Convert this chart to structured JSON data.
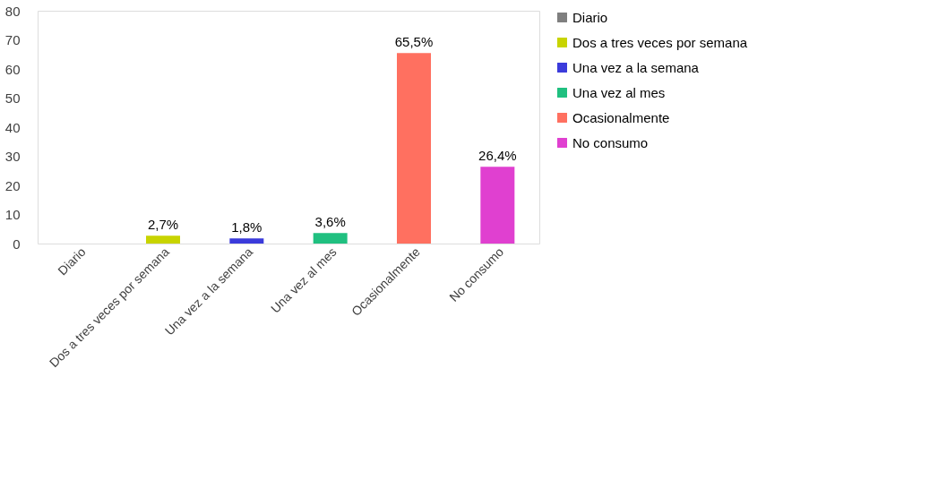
{
  "chart_data": {
    "type": "bar",
    "categories": [
      "Diario",
      "Dos a tres veces por semana",
      "Una vez a la semana",
      "Una vez al mes",
      "Ocasionalmente",
      "No consumo"
    ],
    "series": [
      {
        "name": "Diario",
        "color": "#7f7f7f",
        "values": [
          0,
          null,
          null,
          null,
          null,
          null
        ],
        "value_labels": [
          null,
          null,
          null,
          null,
          null,
          null
        ]
      },
      {
        "name": "Dos a tres veces por semana",
        "color": "#c8d400",
        "values": [
          null,
          2.7,
          null,
          null,
          null,
          null
        ],
        "value_labels": [
          null,
          "2,7%",
          null,
          null,
          null,
          null
        ]
      },
      {
        "name": "Una vez a la semana",
        "color": "#3b3bdb",
        "values": [
          null,
          null,
          1.8,
          null,
          null,
          null
        ],
        "value_labels": [
          null,
          null,
          "1,8%",
          null,
          null,
          null
        ]
      },
      {
        "name": "Una vez al mes",
        "color": "#20c080",
        "values": [
          null,
          null,
          null,
          3.6,
          null,
          null
        ],
        "value_labels": [
          null,
          null,
          null,
          "3,6%",
          null,
          null
        ]
      },
      {
        "name": "Ocasionalmente",
        "color": "#ff7060",
        "values": [
          null,
          null,
          null,
          null,
          65.5,
          null
        ],
        "value_labels": [
          null,
          null,
          null,
          null,
          "65,5%",
          null
        ]
      },
      {
        "name": "No consumo",
        "color": "#e040d0",
        "values": [
          null,
          null,
          null,
          null,
          null,
          26.4
        ],
        "value_labels": [
          null,
          null,
          null,
          null,
          null,
          "26,4%"
        ]
      }
    ],
    "ylim": [
      0,
      80
    ],
    "yticks": [
      0,
      10,
      20,
      30,
      40,
      50,
      60,
      70,
      80
    ],
    "grid": false,
    "legend": "right"
  }
}
